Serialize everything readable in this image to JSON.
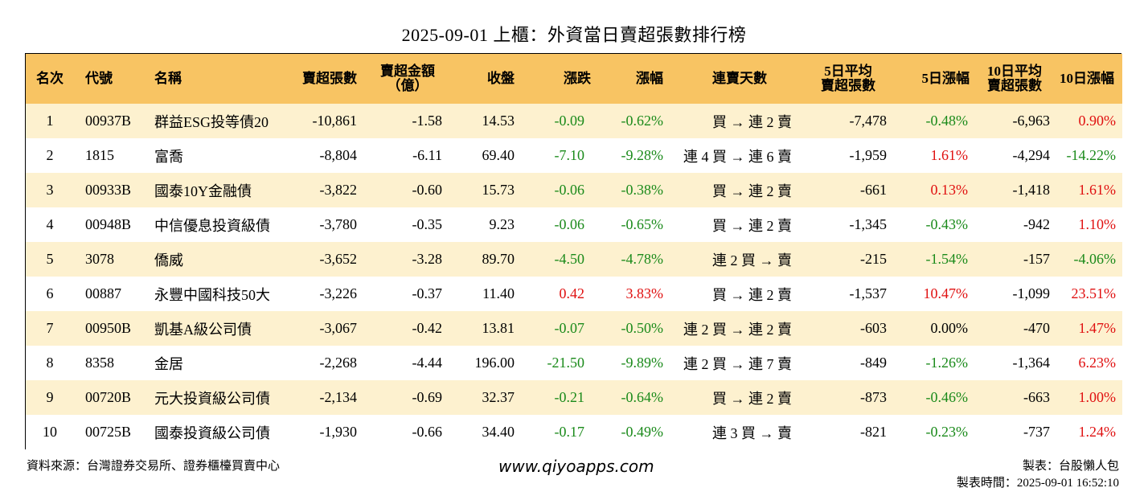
{
  "title": "2025-09-01 上櫃：外資當日賣超張數排行榜",
  "headers": [
    {
      "line1": "名次",
      "line2": ""
    },
    {
      "line1": "代號",
      "line2": ""
    },
    {
      "line1": "名稱",
      "line2": ""
    },
    {
      "line1": "賣超張數",
      "line2": ""
    },
    {
      "line1": "賣超金額",
      "line2": "（億）"
    },
    {
      "line1": "收盤",
      "line2": ""
    },
    {
      "line1": "漲跌",
      "line2": ""
    },
    {
      "line1": "漲幅",
      "line2": ""
    },
    {
      "line1": "連賣天數",
      "line2": ""
    },
    {
      "line1": "5日平均",
      "line2": "賣超張數"
    },
    {
      "line1": "5日漲幅",
      "line2": ""
    },
    {
      "line1": "10日平均",
      "line2": "賣超張數"
    },
    {
      "line1": "10日漲幅",
      "line2": ""
    }
  ],
  "rows": [
    {
      "rank": "1",
      "code": "00937B",
      "name": "群益ESG投等債20",
      "sell": "-10,861",
      "amount": "-1.58",
      "close": "14.53",
      "chg": "-0.09",
      "pct": "-0.62%",
      "streak": "買 → 連 2 賣",
      "avg5": "-7,478",
      "pct5": "-0.48%",
      "avg10": "-6,963",
      "pct10": "0.90%",
      "colors": [
        "green",
        "green",
        "green",
        "red"
      ]
    },
    {
      "rank": "2",
      "code": "1815",
      "name": "富喬",
      "sell": "-8,804",
      "amount": "-6.11",
      "close": "69.40",
      "chg": "-7.10",
      "pct": "-9.28%",
      "streak": "連 4 買 → 連 6 賣",
      "avg5": "-1,959",
      "pct5": "1.61%",
      "avg10": "-4,294",
      "pct10": "-14.22%",
      "colors": [
        "green",
        "green",
        "red",
        "green"
      ]
    },
    {
      "rank": "3",
      "code": "00933B",
      "name": "國泰10Y金融債",
      "sell": "-3,822",
      "amount": "-0.60",
      "close": "15.73",
      "chg": "-0.06",
      "pct": "-0.38%",
      "streak": "買 → 連 2 賣",
      "avg5": "-661",
      "pct5": "0.13%",
      "avg10": "-1,418",
      "pct10": "1.61%",
      "colors": [
        "green",
        "green",
        "red",
        "red"
      ]
    },
    {
      "rank": "4",
      "code": "00948B",
      "name": "中信優息投資級債",
      "sell": "-3,780",
      "amount": "-0.35",
      "close": "9.23",
      "chg": "-0.06",
      "pct": "-0.65%",
      "streak": "買 → 連 2 賣",
      "avg5": "-1,345",
      "pct5": "-0.43%",
      "avg10": "-942",
      "pct10": "1.10%",
      "colors": [
        "green",
        "green",
        "green",
        "red"
      ]
    },
    {
      "rank": "5",
      "code": "3078",
      "name": "僑威",
      "sell": "-3,652",
      "amount": "-3.28",
      "close": "89.70",
      "chg": "-4.50",
      "pct": "-4.78%",
      "streak": "連 2 買 → 賣",
      "avg5": "-215",
      "pct5": "-1.54%",
      "avg10": "-157",
      "pct10": "-4.06%",
      "colors": [
        "green",
        "green",
        "green",
        "green"
      ]
    },
    {
      "rank": "6",
      "code": "00887",
      "name": "永豐中國科技50大",
      "sell": "-3,226",
      "amount": "-0.37",
      "close": "11.40",
      "chg": "0.42",
      "pct": "3.83%",
      "streak": "買 → 連 2 賣",
      "avg5": "-1,537",
      "pct5": "10.47%",
      "avg10": "-1,099",
      "pct10": "23.51%",
      "colors": [
        "red",
        "red",
        "red",
        "red"
      ]
    },
    {
      "rank": "7",
      "code": "00950B",
      "name": "凱基A級公司債",
      "sell": "-3,067",
      "amount": "-0.42",
      "close": "13.81",
      "chg": "-0.07",
      "pct": "-0.50%",
      "streak": "連 2 買 → 連 2 賣",
      "avg5": "-603",
      "pct5": "0.00%",
      "avg10": "-470",
      "pct10": "1.47%",
      "colors": [
        "green",
        "green",
        "black",
        "red"
      ]
    },
    {
      "rank": "8",
      "code": "8358",
      "name": "金居",
      "sell": "-2,268",
      "amount": "-4.44",
      "close": "196.00",
      "chg": "-21.50",
      "pct": "-9.89%",
      "streak": "連 2 買 → 連 7 賣",
      "avg5": "-849",
      "pct5": "-1.26%",
      "avg10": "-1,364",
      "pct10": "6.23%",
      "colors": [
        "green",
        "green",
        "green",
        "red"
      ]
    },
    {
      "rank": "9",
      "code": "00720B",
      "name": "元大投資級公司債",
      "sell": "-2,134",
      "amount": "-0.69",
      "close": "32.37",
      "chg": "-0.21",
      "pct": "-0.64%",
      "streak": "買 → 連 2 賣",
      "avg5": "-873",
      "pct5": "-0.46%",
      "avg10": "-663",
      "pct10": "1.00%",
      "colors": [
        "green",
        "green",
        "green",
        "red"
      ]
    },
    {
      "rank": "10",
      "code": "00725B",
      "name": "國泰投資級公司債",
      "sell": "-1,930",
      "amount": "-0.66",
      "close": "34.40",
      "chg": "-0.17",
      "pct": "-0.49%",
      "streak": "連 3 買 → 賣",
      "avg5": "-821",
      "pct5": "-0.23%",
      "avg10": "-737",
      "pct10": "1.24%",
      "colors": [
        "green",
        "green",
        "green",
        "red"
      ]
    }
  ],
  "footer": {
    "source": "資料來源：台灣證券交易所、證券櫃檯買賣中心",
    "website": "www.qiyoapps.com",
    "maker": "製表：台股懶人包",
    "time": "製表時間：2025-09-01 16:52:10"
  },
  "colors": {
    "header_bg": "#f8c463",
    "odd_row_bg": "#fdf1cf",
    "up": "#e01010",
    "down": "#1a8a1a"
  }
}
